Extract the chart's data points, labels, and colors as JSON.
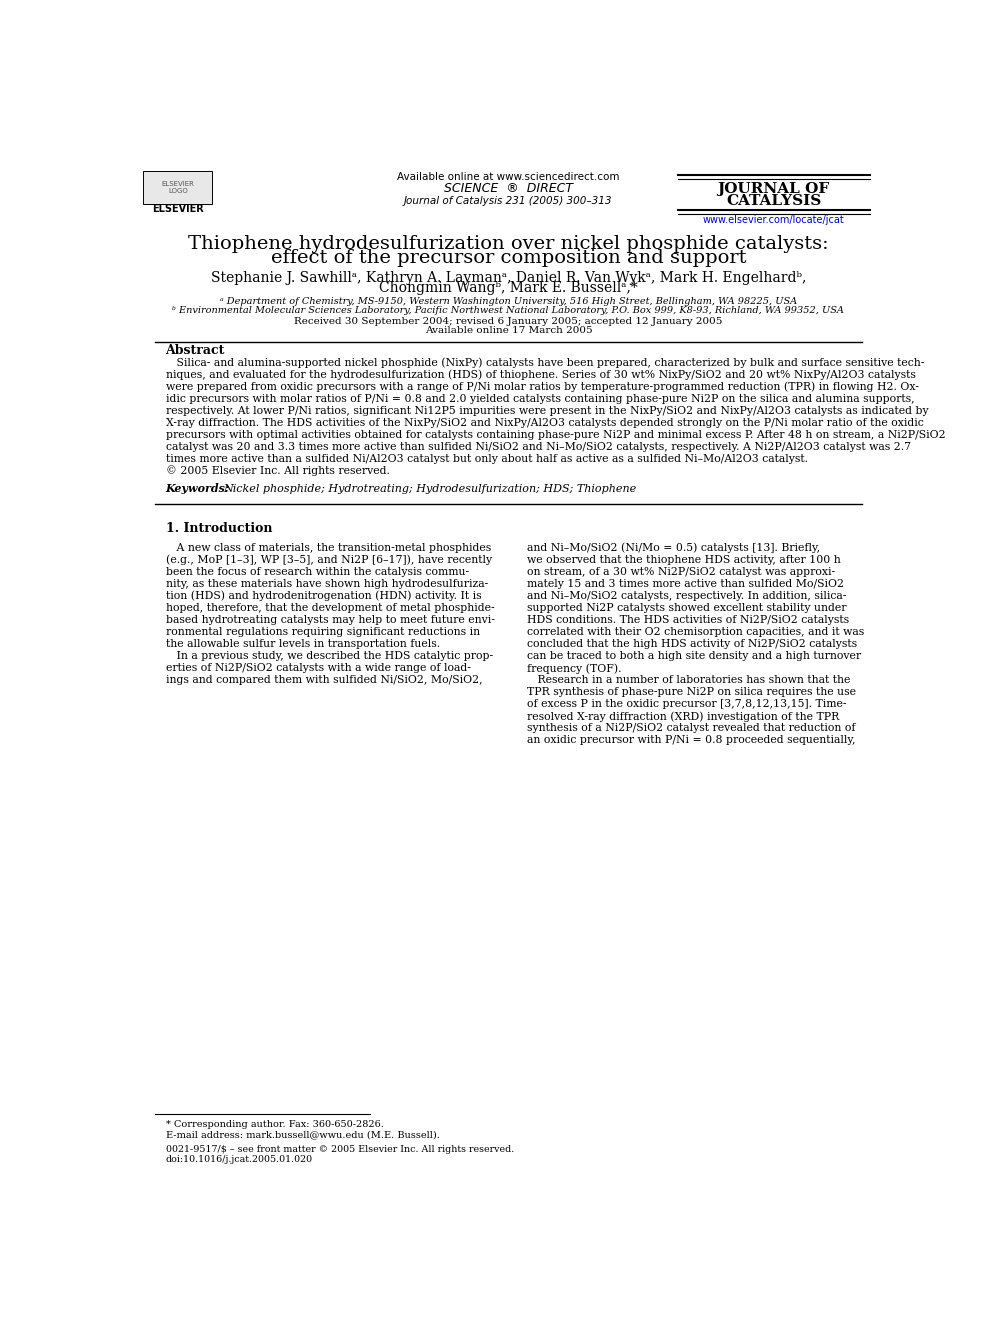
{
  "header_available": "Available online at www.sciencedirect.com",
  "header_journal_label": "Journal of Catalysis 231 (2005) 300–313",
  "journal_name_line1": "JOURNAL OF",
  "journal_name_line2": "CATALYSIS",
  "journal_url": "www.elsevier.com/locate/jcat",
  "title_line1": "Thiophene hydrodesulfurization over nickel phosphide catalysts:",
  "title_line2": "effect of the precursor composition and support",
  "author_line1": "Stephanie J. Sawhillᵃ, Kathryn A. Laymanᵃ, Daniel R. Van Wykᵃ, Mark H. Engelhardᵇ,",
  "author_line2": "Chongmin Wangᵇ, Mark E. Bussellᵃ,*",
  "affil_a": "ᵃ Department of Chemistry, MS-9150, Western Washington University, 516 High Street, Bellingham, WA 98225, USA",
  "affil_b": "ᵇ Environmental Molecular Sciences Laboratory, Pacific Northwest National Laboratory, P.O. Box 999, K8-93, Richland, WA 99352, USA",
  "received": "Received 30 September 2004; revised 6 January 2005; accepted 12 January 2005",
  "available_online": "Available online 17 March 2005",
  "abstract_title": "Abstract",
  "abstract_lines": [
    "   Silica- and alumina-supported nickel phosphide (NixPy) catalysts have been prepared, characterized by bulk and surface sensitive tech-",
    "niques, and evaluated for the hydrodesulfurization (HDS) of thiophene. Series of 30 wt% NixPy/SiO2 and 20 wt% NixPy/Al2O3 catalysts",
    "were prepared from oxidic precursors with a range of P/Ni molar ratios by temperature-programmed reduction (TPR) in flowing H2. Ox-",
    "idic precursors with molar ratios of P/Ni = 0.8 and 2.0 yielded catalysts containing phase-pure Ni2P on the silica and alumina supports,",
    "respectively. At lower P/Ni ratios, significant Ni12P5 impurities were present in the NixPy/SiO2 and NixPy/Al2O3 catalysts as indicated by",
    "X-ray diffraction. The HDS activities of the NixPy/SiO2 and NixPy/Al2O3 catalysts depended strongly on the P/Ni molar ratio of the oxidic",
    "precursors with optimal activities obtained for catalysts containing phase-pure Ni2P and minimal excess P. After 48 h on stream, a Ni2P/SiO2",
    "catalyst was 20 and 3.3 times more active than sulfided Ni/SiO2 and Ni–Mo/SiO2 catalysts, respectively. A Ni2P/Al2O3 catalyst was 2.7",
    "times more active than a sulfided Ni/Al2O3 catalyst but only about half as active as a sulfided Ni–Mo/Al2O3 catalyst.",
    "© 2005 Elsevier Inc. All rights reserved."
  ],
  "keywords_label": "Keywords:",
  "keywords_text": "Nickel phosphide; Hydrotreating; Hydrodesulfurization; HDS; Thiophene",
  "section1_title": "1. Introduction",
  "col1_lines": [
    "   A new class of materials, the transition-metal phosphides",
    "(e.g., MoP [1–3], WP [3–5], and Ni2P [6–17]), have recently",
    "been the focus of research within the catalysis commu-",
    "nity, as these materials have shown high hydrodesulfuriza-",
    "tion (HDS) and hydrodenitrogenation (HDN) activity. It is",
    "hoped, therefore, that the development of metal phosphide-",
    "based hydrotreating catalysts may help to meet future envi-",
    "ronmental regulations requiring significant reductions in",
    "the allowable sulfur levels in transportation fuels.",
    "   In a previous study, we described the HDS catalytic prop-",
    "erties of Ni2P/SiO2 catalysts with a wide range of load-",
    "ings and compared them with sulfided Ni/SiO2, Mo/SiO2,"
  ],
  "col2_lines": [
    "and Ni–Mo/SiO2 (Ni/Mo = 0.5) catalysts [13]. Briefly,",
    "we observed that the thiophene HDS activity, after 100 h",
    "on stream, of a 30 wt% Ni2P/SiO2 catalyst was approxi-",
    "mately 15 and 3 times more active than sulfided Mo/SiO2",
    "and Ni–Mo/SiO2 catalysts, respectively. In addition, silica-",
    "supported Ni2P catalysts showed excellent stability under",
    "HDS conditions. The HDS activities of Ni2P/SiO2 catalysts",
    "correlated with their O2 chemisorption capacities, and it was",
    "concluded that the high HDS activity of Ni2P/SiO2 catalysts",
    "can be traced to both a high site density and a high turnover",
    "frequency (TOF).",
    "   Research in a number of laboratories has shown that the",
    "TPR synthesis of phase-pure Ni2P on silica requires the use",
    "of excess P in the oxidic precursor [3,7,8,12,13,15]. Time-",
    "resolved X-ray diffraction (XRD) investigation of the TPR",
    "synthesis of a Ni2P/SiO2 catalyst revealed that reduction of",
    "an oxidic precursor with P/Ni = 0.8 proceeded sequentially,"
  ],
  "footnote_star": "* Corresponding author. Fax: 360-650-2826.",
  "footnote_email": "E-mail address: mark.bussell@wwu.edu (M.E. Bussell).",
  "copyright1": "0021-9517/$ – see front matter © 2005 Elsevier Inc. All rights reserved.",
  "copyright2": "doi:10.1016/j.jcat.2005.01.020",
  "background_color": "#ffffff",
  "text_color": "#000000",
  "link_color": "#0000cc"
}
